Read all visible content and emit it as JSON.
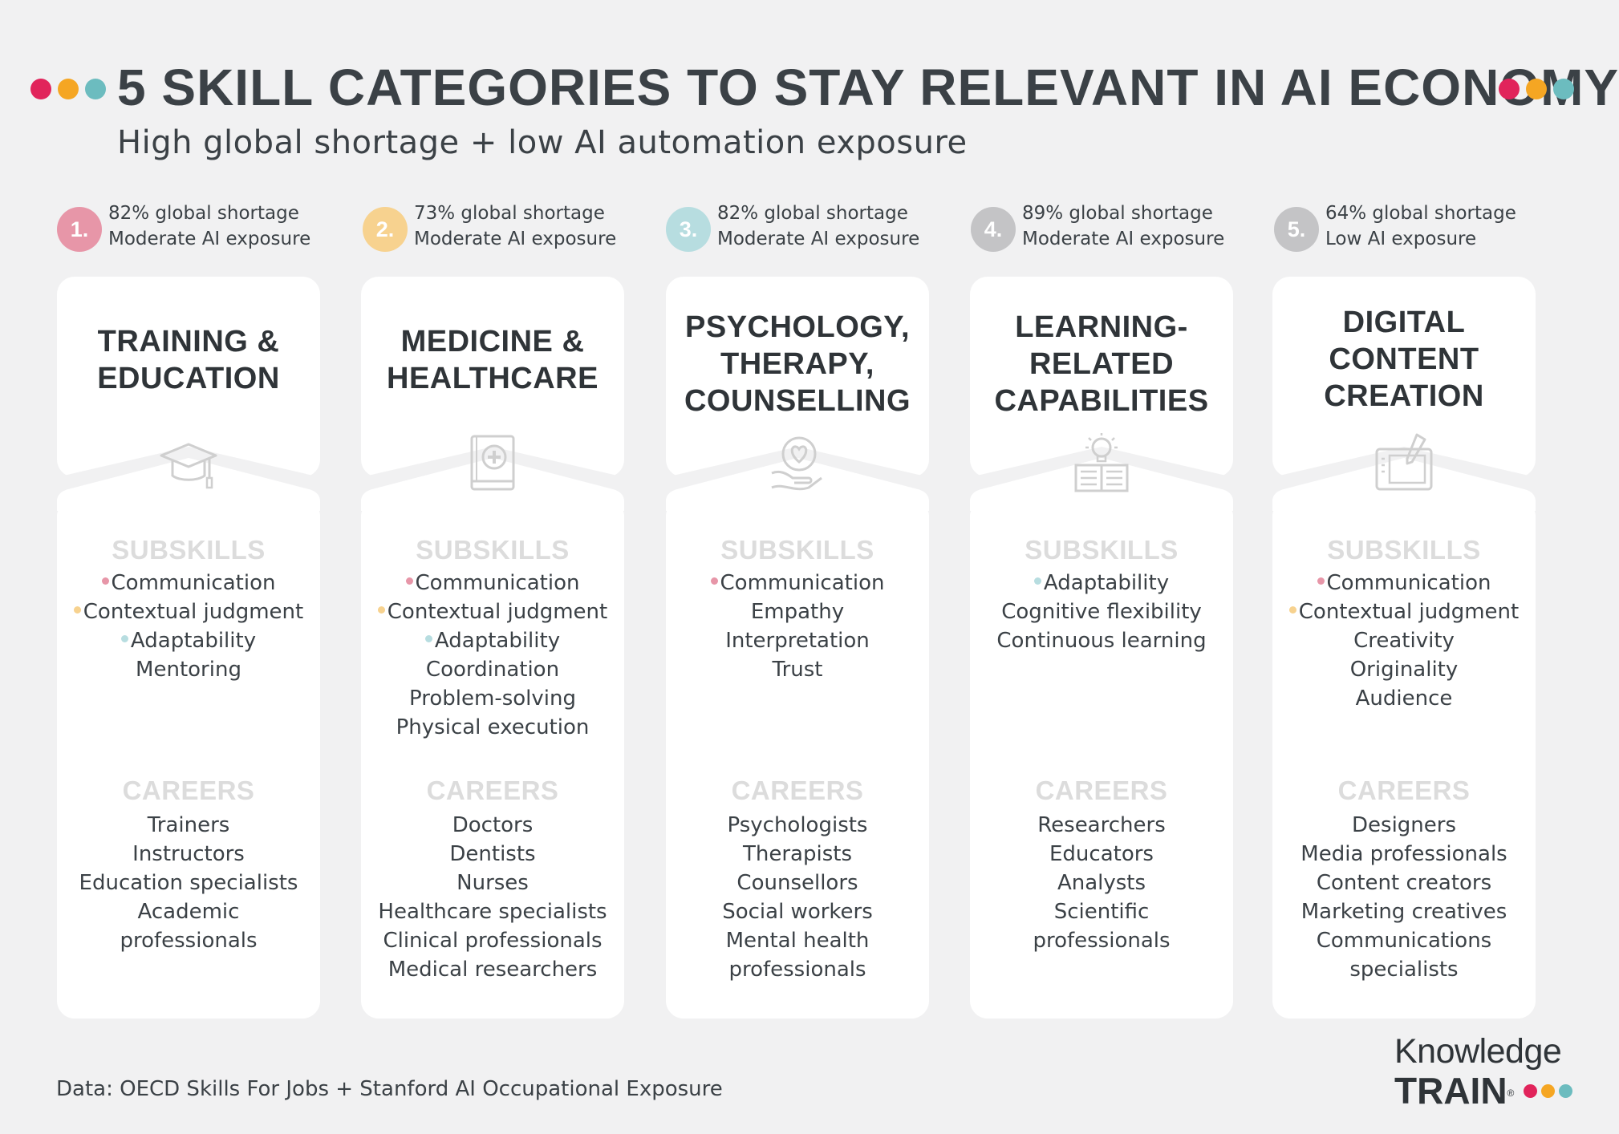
{
  "colors": {
    "pink": "#e56b8a",
    "yellow": "#f7c56b",
    "teal": "#8ccbd0",
    "grey": "#bfbfc0",
    "dot_red": "#e1245b",
    "dot_orange": "#f5a623",
    "dot_teal": "#6cbcbf",
    "section_head": "#dcdcdc"
  },
  "header": {
    "title": "5 SKILL CATEGORIES TO STAY RELEVANT IN AI ECONOMY",
    "subtitle": "High global shortage + low AI automation exposure"
  },
  "categories": [
    {
      "number": "1.",
      "shortage": "82% global  shortage",
      "exposure": "Moderate AI exposure",
      "badge_color": "#e796a8",
      "title_lines": [
        "TRAINING &",
        "EDUCATION"
      ],
      "icon": "graduation-cap-icon",
      "subskills_label": "SUBSKILLS",
      "subskills": [
        {
          "text": "Communication",
          "bullet": "#e796a8"
        },
        {
          "text": "Contextual judgment",
          "bullet": "#f7d28f"
        },
        {
          "text": "Adaptability",
          "bullet": "#b7dde0"
        },
        {
          "text": "Mentoring",
          "bullet": ""
        }
      ],
      "careers_label": "CAREERS",
      "careers": [
        "Trainers",
        "Instructors",
        "Education specialists",
        "Academic",
        "professionals"
      ]
    },
    {
      "number": "2.",
      "shortage": "73% global  shortage",
      "exposure": "Moderate AI exposure",
      "badge_color": "#f7d28f",
      "title_lines": [
        "MEDICINE &",
        "HEALTHCARE"
      ],
      "icon": "medical-book-icon",
      "subskills_label": "SUBSKILLS",
      "subskills": [
        {
          "text": "Communication",
          "bullet": "#e796a8"
        },
        {
          "text": "Contextual judgment",
          "bullet": "#f7d28f"
        },
        {
          "text": "Adaptability",
          "bullet": "#b7dde0"
        },
        {
          "text": "Coordination",
          "bullet": ""
        },
        {
          "text": "Problem-solving",
          "bullet": ""
        },
        {
          "text": "Physical execution",
          "bullet": ""
        }
      ],
      "careers_label": "CAREERS",
      "careers": [
        "Doctors",
        "Dentists",
        "Nurses",
        "Healthcare specialists",
        "Clinical professionals",
        "Medical researchers"
      ]
    },
    {
      "number": "3.",
      "shortage": "82% global  shortage",
      "exposure": "Moderate AI exposure",
      "badge_color": "#b7dde0",
      "title_lines": [
        "PSYCHOLOGY,",
        "THERAPY,",
        "COUNSELLING"
      ],
      "icon": "heart-mind-icon",
      "subskills_label": "SUBSKILLS",
      "subskills": [
        {
          "text": "Communication",
          "bullet": "#e796a8"
        },
        {
          "text": "Empathy",
          "bullet": ""
        },
        {
          "text": "Interpretation",
          "bullet": ""
        },
        {
          "text": "Trust",
          "bullet": ""
        }
      ],
      "careers_label": "CAREERS",
      "careers": [
        "Psychologists",
        "Therapists",
        "Counsellors",
        "Social workers",
        "Mental health",
        "professionals"
      ]
    },
    {
      "number": "4.",
      "shortage": "89% global  shortage",
      "exposure": "Moderate AI exposure",
      "badge_color": "#c4c4c6",
      "title_lines": [
        "LEARNING-",
        "RELATED",
        "CAPABILITIES"
      ],
      "icon": "lightbulb-book-icon",
      "subskills_label": "SUBSKILLS",
      "subskills": [
        {
          "text": "Adaptability",
          "bullet": "#b7dde0"
        },
        {
          "text": "Cognitive flexibility",
          "bullet": ""
        },
        {
          "text": "Continuous learning",
          "bullet": ""
        }
      ],
      "careers_label": "CAREERS",
      "careers": [
        "Researchers",
        "Educators",
        "Analysts",
        "Scientific",
        "professionals"
      ]
    },
    {
      "number": "5.",
      "shortage": "64% global  shortage",
      "exposure": "Low AI exposure",
      "badge_color": "#c4c4c6",
      "title_lines": [
        "DIGITAL",
        "CONTENT",
        "CREATION"
      ],
      "icon": "drawing-tablet-icon",
      "subskills_label": "SUBSKILLS",
      "subskills": [
        {
          "text": "Communication",
          "bullet": "#e796a8"
        },
        {
          "text": "Contextual judgment",
          "bullet": "#f7d28f"
        },
        {
          "text": "Creativity",
          "bullet": ""
        },
        {
          "text": "Originality",
          "bullet": ""
        },
        {
          "text": "Audience",
          "bullet": ""
        }
      ],
      "careers_label": "CAREERS",
      "careers": [
        "Designers",
        "Media professionals",
        "Content creators",
        "Marketing creatives",
        "Communications",
        "specialists"
      ]
    }
  ],
  "footer": {
    "source": "Data: OECD Skills For Jobs + Stanford AI Occupational Exposure",
    "logo_top": "Knowledge",
    "logo_bottom": "TRAIN",
    "logo_mark": "®"
  }
}
